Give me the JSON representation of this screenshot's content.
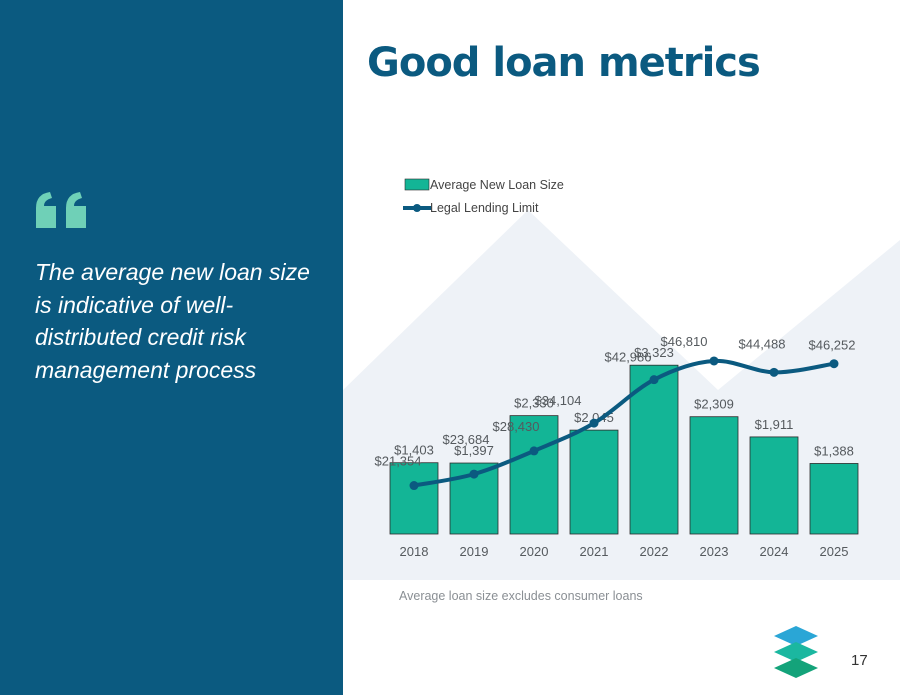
{
  "slide": {
    "title": "Good loan metrics",
    "quote": "The average new loan size is indicative of well-distributed credit risk management process",
    "footnote": "Average loan size excludes consumer loans",
    "page_number": "17",
    "quote_icon": "quote-mark-icon",
    "logo_icon": "stacked-layers-logo-icon"
  },
  "colors": {
    "panel": "#0b5a80",
    "bar": "#13b596",
    "line": "#0b5a80",
    "quote_icon": "#6fd0b7",
    "background_mountain": "#eef2f7"
  },
  "chart_data": {
    "type": "bar",
    "categories": [
      "2018",
      "2019",
      "2020",
      "2021",
      "2022",
      "2023",
      "2024",
      "2025"
    ],
    "series": [
      {
        "name": "Average New Loan Size",
        "type": "bar",
        "values": [
          1403,
          1397,
          2330,
          2045,
          3323,
          2309,
          1911,
          1388
        ],
        "labels": [
          "$1,403",
          "$1,397",
          "$2,330",
          "$2,045",
          "$3,323",
          "$2,309",
          "$1,911",
          "$1,388"
        ]
      },
      {
        "name": "Legal Lending Limit",
        "type": "line",
        "values": [
          21354,
          23684,
          28430,
          34104,
          42986,
          46810,
          44488,
          46252
        ],
        "labels": [
          "$21,354",
          "$23,684",
          "$28,430",
          "$34,104",
          "$42,986",
          "$46,810",
          "$44,488",
          "$46,252"
        ]
      }
    ],
    "legend_position": "top-left",
    "grid": false
  }
}
